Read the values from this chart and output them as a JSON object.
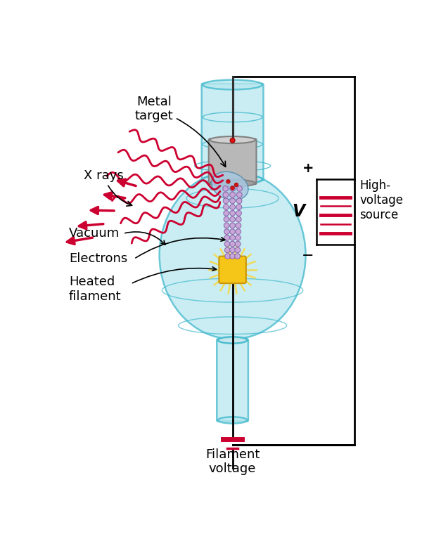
{
  "bg_color": "#ffffff",
  "tube_color": "#b8e8f0",
  "tube_edge_color": "#40b8cc",
  "tube_alpha": 0.75,
  "metal_target_color": "#c0c0c0",
  "metal_target_edge": "#888888",
  "filament_color": "#f5c518",
  "filament_edge": "#c8960a",
  "electron_color": "#c8a8d8",
  "electron_edge": "#8860a8",
  "xray_color": "#cc0030",
  "wire_color": "#111111",
  "battery_color": "#cc0030",
  "labels": {
    "metal_target": "Metal\ntarget",
    "x_rays": "X rays",
    "vacuum": "Vacuum",
    "electrons": "Electrons",
    "heated_filament": "Heated\nfilament",
    "filament_voltage": "Filament\nvoltage",
    "high_voltage": "High-\nvoltage\nsource",
    "V": "V",
    "plus": "+",
    "minus": "−"
  },
  "label_fontsize": 13,
  "small_fontsize": 12,
  "figsize": [
    6.0,
    7.67
  ],
  "dpi": 100,
  "xlim": [
    0,
    6
  ],
  "ylim": [
    0,
    7.67
  ]
}
